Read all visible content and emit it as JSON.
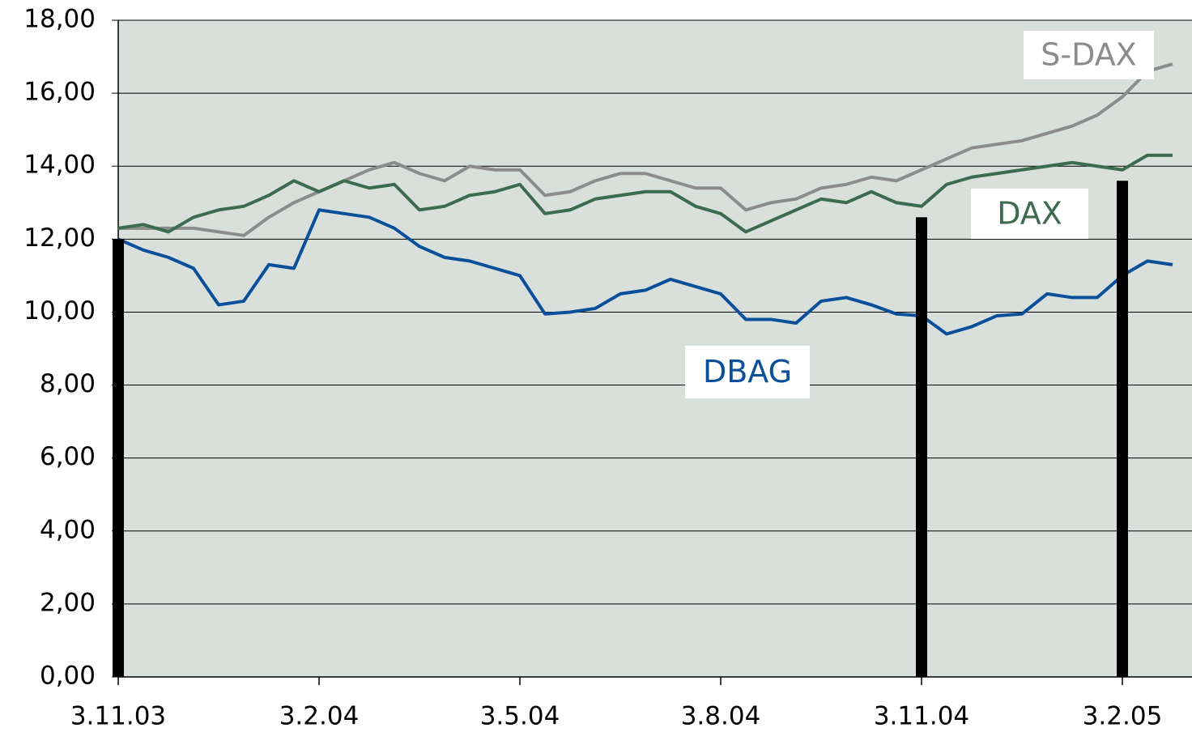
{
  "chart_data": {
    "type": "line",
    "categories": [
      "3.11.03",
      null,
      null,
      null,
      null,
      null,
      null,
      null,
      "3.2.04",
      null,
      null,
      null,
      null,
      null,
      null,
      null,
      "3.5.04",
      null,
      null,
      null,
      null,
      null,
      null,
      null,
      "3.8.04",
      null,
      null,
      null,
      null,
      null,
      null,
      null,
      "3.11.04",
      null,
      null,
      null,
      null,
      null,
      null,
      null,
      "3.2.05",
      null,
      null
    ],
    "series": [
      {
        "name": "S-DAX",
        "color": "#8c8c8c",
        "values": [
          12.3,
          12.3,
          12.3,
          12.3,
          12.2,
          12.1,
          12.6,
          13.0,
          13.3,
          13.6,
          13.9,
          14.1,
          13.8,
          13.6,
          14.0,
          13.9,
          13.9,
          13.2,
          13.3,
          13.6,
          13.8,
          13.8,
          13.6,
          13.4,
          13.4,
          12.8,
          13.0,
          13.1,
          13.4,
          13.5,
          13.7,
          13.6,
          13.9,
          14.2,
          14.5,
          14.6,
          14.7,
          14.9,
          15.1,
          15.4,
          15.9,
          16.6,
          16.8
        ]
      },
      {
        "name": "DAX",
        "color": "#3d6b50",
        "values": [
          12.3,
          12.4,
          12.2,
          12.6,
          12.8,
          12.9,
          13.2,
          13.6,
          13.3,
          13.6,
          13.4,
          13.5,
          12.8,
          12.9,
          13.2,
          13.3,
          13.5,
          12.7,
          12.8,
          13.1,
          13.2,
          13.3,
          13.3,
          12.9,
          12.7,
          12.2,
          12.5,
          12.8,
          13.1,
          13.0,
          13.3,
          13.0,
          12.9,
          13.5,
          13.7,
          13.8,
          13.9,
          14.0,
          14.1,
          14.0,
          13.9,
          14.3,
          14.3
        ]
      },
      {
        "name": "DBAG",
        "color": "#0a4f9a",
        "values": [
          12.0,
          11.7,
          11.5,
          11.2,
          10.2,
          10.3,
          11.3,
          11.2,
          12.8,
          12.7,
          12.6,
          12.3,
          11.8,
          11.5,
          11.4,
          11.2,
          11.0,
          9.95,
          10.0,
          10.1,
          10.5,
          10.6,
          10.9,
          10.7,
          10.5,
          9.8,
          9.8,
          9.7,
          10.3,
          10.4,
          10.2,
          9.95,
          9.9,
          9.4,
          9.6,
          9.9,
          9.95,
          10.5,
          10.4,
          10.4,
          11.0,
          11.4,
          11.3
        ]
      }
    ],
    "bars": {
      "color": "#000000",
      "values": [
        12.0,
        null,
        null,
        null,
        null,
        null,
        null,
        null,
        null,
        null,
        null,
        null,
        null,
        null,
        null,
        null,
        null,
        null,
        null,
        null,
        null,
        null,
        null,
        null,
        null,
        null,
        null,
        null,
        null,
        null,
        null,
        null,
        12.6,
        null,
        null,
        null,
        null,
        null,
        null,
        null,
        13.6,
        null,
        null
      ]
    },
    "ylim": [
      0,
      18
    ],
    "yticks": [
      {
        "value": 0,
        "label": "0,00"
      },
      {
        "value": 2,
        "label": "2,00"
      },
      {
        "value": 4,
        "label": "4,00"
      },
      {
        "value": 6,
        "label": "6,00"
      },
      {
        "value": 8,
        "label": "8,00"
      },
      {
        "value": 10,
        "label": "10,00"
      },
      {
        "value": 12,
        "label": "12,00"
      },
      {
        "value": 14,
        "label": "14,00"
      },
      {
        "value": 16,
        "label": "16,00"
      },
      {
        "value": 18,
        "label": "18,00"
      }
    ],
    "grid": true
  }
}
